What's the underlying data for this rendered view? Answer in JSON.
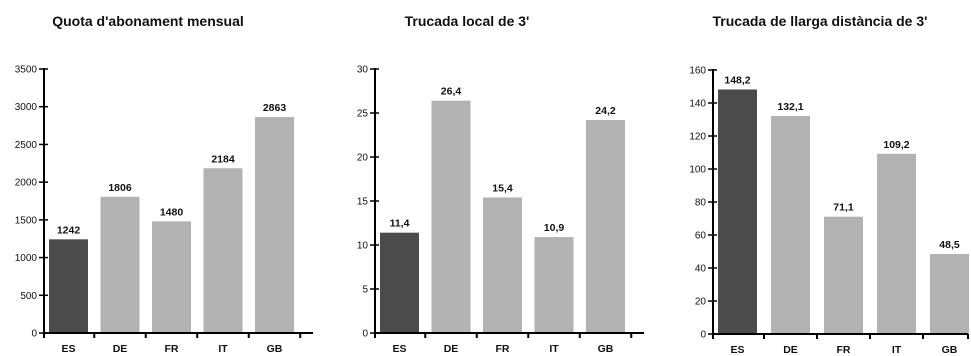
{
  "colors": {
    "highlight_bar": "#4b4b4b",
    "other_bar": "#b2b2b2",
    "axis": "#000000"
  },
  "chart_data": [
    {
      "type": "bar",
      "title": "Quota d'abonament mensual",
      "categories": [
        "ES",
        "DE",
        "FR",
        "IT",
        "GB"
      ],
      "values": [
        1242,
        1806,
        1480,
        2184,
        2863
      ],
      "value_labels": [
        "1242",
        "1806",
        "1480",
        "2184",
        "2863"
      ],
      "highlight": "ES",
      "ylim": [
        0,
        3500
      ],
      "yticks": [
        0,
        500,
        1000,
        1500,
        2000,
        2500,
        3000,
        3500
      ],
      "ytick_labels": [
        "0",
        "500",
        "1000",
        "1500",
        "2000",
        "2500",
        "3000",
        "3500"
      ],
      "xlabel": "",
      "ylabel": "",
      "grid": false,
      "legend": false
    },
    {
      "type": "bar",
      "title": "Trucada local de 3'",
      "categories": [
        "ES",
        "DE",
        "FR",
        "IT",
        "GB"
      ],
      "values": [
        11.4,
        26.4,
        15.4,
        10.9,
        24.2
      ],
      "value_labels": [
        "11,4",
        "26,4",
        "15,4",
        "10,9",
        "24,2"
      ],
      "highlight": "ES",
      "ylim": [
        0,
        30
      ],
      "yticks": [
        0,
        5,
        10,
        15,
        20,
        25,
        30
      ],
      "ytick_labels": [
        "0",
        "5",
        "10",
        "15",
        "20",
        "25",
        "30"
      ],
      "xlabel": "",
      "ylabel": "",
      "grid": false,
      "legend": false
    },
    {
      "type": "bar",
      "title": "Trucada de llarga distància de 3'",
      "categories": [
        "ES",
        "DE",
        "FR",
        "IT",
        "GB"
      ],
      "values": [
        148.2,
        132.1,
        71.1,
        109.2,
        48.5
      ],
      "value_labels": [
        "148,2",
        "132,1",
        "71,1",
        "109,2",
        "48,5"
      ],
      "highlight": "ES",
      "ylim": [
        0,
        160
      ],
      "yticks": [
        0,
        20,
        40,
        60,
        80,
        100,
        120,
        140,
        160
      ],
      "ytick_labels": [
        "0",
        "20",
        "40",
        "60",
        "80",
        "100",
        "120",
        "140",
        "160"
      ],
      "xlabel": "",
      "ylabel": "",
      "grid": false,
      "legend": false
    }
  ]
}
